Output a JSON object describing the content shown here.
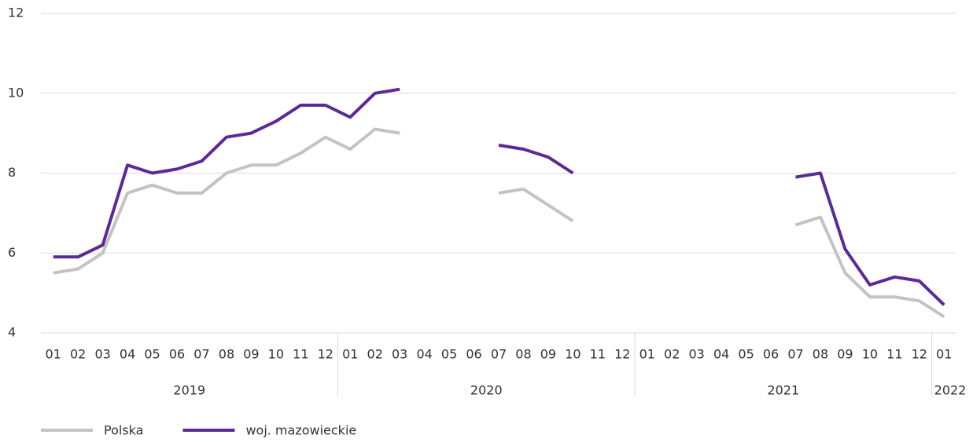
{
  "chart_data": {
    "type": "line",
    "groups": [
      {
        "label": "2019",
        "categories": [
          "01",
          "02",
          "03",
          "04",
          "05",
          "06",
          "07",
          "08",
          "09",
          "10",
          "11",
          "12"
        ]
      },
      {
        "label": "2020",
        "categories": [
          "01",
          "02",
          "03",
          "04",
          "05",
          "06",
          "07",
          "08",
          "09",
          "10",
          "11",
          "12"
        ]
      },
      {
        "label": "2021",
        "categories": [
          "01",
          "02",
          "03",
          "04",
          "05",
          "06",
          "07",
          "08",
          "09",
          "10",
          "11",
          "12"
        ]
      },
      {
        "label": "2022",
        "categories": [
          "01"
        ]
      }
    ],
    "series": [
      {
        "name": "Polska",
        "color": "#c3c3c3",
        "values": [
          5.5,
          5.6,
          6.0,
          7.5,
          7.7,
          7.5,
          7.5,
          8.0,
          8.2,
          8.2,
          8.5,
          8.9,
          8.6,
          9.1,
          9.0,
          null,
          null,
          null,
          7.5,
          7.6,
          7.2,
          6.8,
          null,
          null,
          null,
          null,
          null,
          null,
          null,
          null,
          6.7,
          6.9,
          5.5,
          4.9,
          4.9,
          4.8,
          4.4
        ]
      },
      {
        "name": "woj. mazowieckie",
        "color": "#5b2a96",
        "values": [
          5.9,
          5.9,
          6.2,
          8.2,
          8.0,
          8.1,
          8.3,
          8.9,
          9.0,
          9.3,
          9.7,
          9.7,
          9.4,
          10.0,
          10.1,
          null,
          null,
          null,
          8.7,
          8.6,
          8.4,
          8.0,
          null,
          null,
          null,
          null,
          null,
          null,
          null,
          null,
          7.9,
          8.0,
          6.1,
          5.2,
          5.4,
          5.3,
          4.7
        ]
      }
    ],
    "ylim": [
      4,
      12
    ],
    "yticks": [
      4,
      6,
      8,
      10,
      12
    ],
    "grid": true,
    "legend": "bottom-left"
  }
}
